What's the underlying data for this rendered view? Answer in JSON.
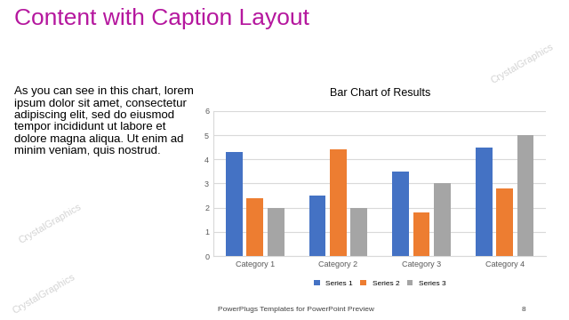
{
  "slide": {
    "title": "Content with Caption Layout",
    "caption": "As you can see in this chart, lorem ipsum dolor sit amet, consectetur adipiscing elit, sed do eiusmod tempor incididunt ut labore et dolore magna aliqua. Ut enim ad minim veniam, quis nostrud.",
    "footer": "PowerPlugs Templates for PowerPoint Preview",
    "page_number": "8",
    "watermark": "CrystalGraphics"
  },
  "chart_data": {
    "type": "bar",
    "title": "Bar Chart of Results",
    "categories": [
      "Category 1",
      "Category 2",
      "Category 3",
      "Category 4"
    ],
    "series": [
      {
        "name": "Series 1",
        "color": "#4472c4",
        "values": [
          4.3,
          2.5,
          3.5,
          4.5
        ]
      },
      {
        "name": "Series 2",
        "color": "#ed7d31",
        "values": [
          2.4,
          4.4,
          1.8,
          2.8
        ]
      },
      {
        "name": "Series 3",
        "color": "#a5a5a5",
        "values": [
          2,
          2,
          3,
          5
        ]
      }
    ],
    "ylim": [
      0,
      6
    ],
    "yticks": [
      0,
      1,
      2,
      3,
      4,
      5,
      6
    ],
    "grid": true,
    "legend": "bottom"
  }
}
